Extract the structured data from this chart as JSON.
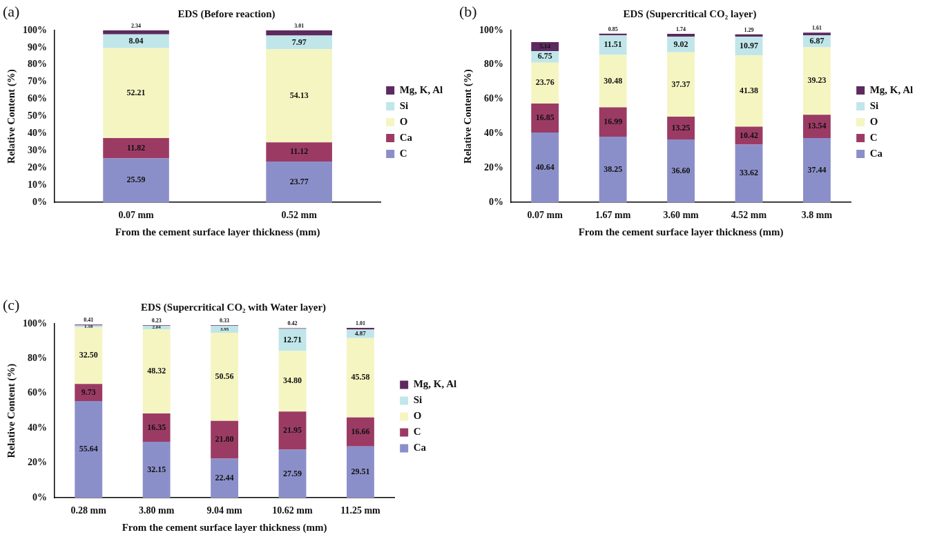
{
  "chart_data": [
    {
      "type": "bar",
      "title": "EDS (Before reaction)",
      "xlabel": "From the cement surface layer thickness (mm)",
      "ylabel": "Relative Content (%)",
      "annotations": [
        "(a)"
      ],
      "categories": [
        "0.07 mm",
        "0.52 mm"
      ],
      "stacked": true,
      "legend": "right",
      "ylim": [
        0,
        100
      ],
      "yticks": [
        {
          "value": 0,
          "label": "0%"
        },
        {
          "value": 10,
          "label": "10%"
        },
        {
          "value": 20,
          "label": "20%"
        },
        {
          "value": 30,
          "label": "30%"
        },
        {
          "value": 40,
          "label": "40%"
        },
        {
          "value": 50,
          "label": "50%"
        },
        {
          "value": 60,
          "label": "60%"
        },
        {
          "value": 70,
          "label": "70%"
        },
        {
          "value": 80,
          "label": "80%"
        },
        {
          "value": 90,
          "label": "90%"
        },
        {
          "value": 100,
          "label": "100%"
        }
      ],
      "series": [
        {
          "name": "C",
          "color": "#8b8fc9",
          "values": [
            25.59,
            23.77
          ],
          "value_labels": [
            "25.59",
            "23.77"
          ]
        },
        {
          "name": "Ca",
          "color": "#9b3b64",
          "values": [
            11.82,
            11.12
          ],
          "value_labels": [
            "11.82",
            "11.12"
          ]
        },
        {
          "name": "O",
          "color": "#f5f5c2",
          "values": [
            52.21,
            54.13
          ],
          "value_labels": [
            "52.21",
            "54.13"
          ]
        },
        {
          "name": "Si",
          "color": "#c0e6ea",
          "values": [
            8.04,
            7.97
          ],
          "value_labels": [
            "8.04",
            "7.97"
          ]
        },
        {
          "name": "Mg, K, Al",
          "color": "#5c2a5f",
          "values": [
            2.34,
            3.01
          ],
          "value_labels": [
            "2.34",
            "3.01"
          ]
        }
      ]
    },
    {
      "type": "bar",
      "title": "EDS (Supercritical CO₂ layer)",
      "xlabel": "From the cement surface layer thickness (mm)",
      "ylabel": "Relative Content (%)",
      "annotations": [
        "(b)"
      ],
      "categories": [
        "0.07 mm",
        "1.67 mm",
        "3.60 mm",
        "4.52 mm",
        "3.8 mm"
      ],
      "stacked": true,
      "legend": "right",
      "ylim": [
        0,
        100
      ],
      "yticks": [
        {
          "value": 0,
          "label": "0%"
        },
        {
          "value": 20,
          "label": "20%"
        },
        {
          "value": 40,
          "label": "40%"
        },
        {
          "value": 60,
          "label": "60%"
        },
        {
          "value": 80,
          "label": "80%"
        },
        {
          "value": 100,
          "label": "100%"
        }
      ],
      "series": [
        {
          "name": "Ca",
          "color": "#8b8fc9",
          "values": [
            40.64,
            38.25,
            36.6,
            33.62,
            37.44
          ],
          "value_labels": [
            "40.64",
            "38.25",
            "36.60",
            "33.62",
            "37.44"
          ]
        },
        {
          "name": "C",
          "color": "#9b3b64",
          "values": [
            16.85,
            16.99,
            13.25,
            10.42,
            13.54
          ],
          "value_labels": [
            "16.85",
            "16.99",
            "13.25",
            "10.42",
            "13.54"
          ]
        },
        {
          "name": "O",
          "color": "#f5f5c2",
          "values": [
            23.76,
            30.48,
            37.37,
            41.38,
            39.23
          ],
          "value_labels": [
            "23.76",
            "30.48",
            "37.37",
            "41.38",
            "39.23"
          ]
        },
        {
          "name": "Si",
          "color": "#c0e6ea",
          "values": [
            6.75,
            11.51,
            9.02,
            10.97,
            6.87
          ],
          "value_labels": [
            "6.75",
            "11.51",
            "9.02",
            "10.97",
            "6.87"
          ]
        },
        {
          "name": "Mg, K, Al",
          "color": "#5c2a5f",
          "values": [
            5.14,
            0.85,
            1.74,
            1.29,
            1.61
          ],
          "value_labels": [
            "5.14",
            "0.85",
            "1.74",
            "1.29",
            "1.61"
          ]
        }
      ]
    },
    {
      "type": "bar",
      "title": "EDS (Supercritical CO₂ with Water layer)",
      "xlabel": "From the cement surface layer thickness (mm)",
      "ylabel": "Relative Content (%)",
      "annotations": [
        "(c)"
      ],
      "categories": [
        "0.28 mm",
        "3.80 mm",
        "9.04 mm",
        "10.62 mm",
        "11.25 mm"
      ],
      "stacked": true,
      "legend": "right",
      "ylim": [
        0,
        100
      ],
      "yticks": [
        {
          "value": 0,
          "label": "0%"
        },
        {
          "value": 20,
          "label": "20%"
        },
        {
          "value": 40,
          "label": "40%"
        },
        {
          "value": 60,
          "label": "60%"
        },
        {
          "value": 80,
          "label": "80%"
        },
        {
          "value": 100,
          "label": "100%"
        }
      ],
      "series": [
        {
          "name": "Ca",
          "color": "#8b8fc9",
          "values": [
            55.64,
            32.15,
            22.44,
            27.59,
            29.51
          ],
          "value_labels": [
            "55.64",
            "32.15",
            "22.44",
            "27.59",
            "29.51"
          ]
        },
        {
          "name": "C",
          "color": "#9b3b64",
          "values": [
            9.73,
            16.35,
            21.8,
            21.95,
            16.66
          ],
          "value_labels": [
            "9.73",
            "16.35",
            "21.80",
            "21.95",
            "16.66"
          ]
        },
        {
          "name": "O",
          "color": "#f5f5c2",
          "values": [
            32.5,
            48.32,
            50.56,
            34.8,
            45.58
          ],
          "value_labels": [
            "32.50",
            "48.32",
            "50.56",
            "34.80",
            "45.58"
          ]
        },
        {
          "name": "Si",
          "color": "#c0e6ea",
          "values": [
            1.18,
            2.04,
            3.95,
            12.71,
            4.87
          ],
          "value_labels": [
            "1.18",
            "2.04",
            "3.95",
            "12.71",
            "4.87"
          ]
        },
        {
          "name": "Mg, K, Al",
          "color": "#5c2a5f",
          "values": [
            0.41,
            0.23,
            0.33,
            0.42,
            1.01
          ],
          "value_labels": [
            "0.41",
            "0.23",
            "0.33",
            "0.42",
            "1.01"
          ]
        }
      ]
    }
  ]
}
